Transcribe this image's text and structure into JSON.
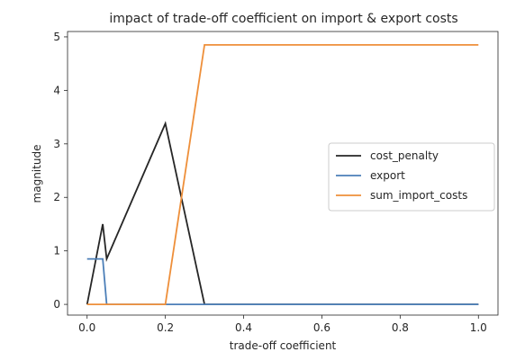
{
  "chart_data": {
    "type": "line",
    "title": "impact of trade-off coefficient on import & export costs",
    "xlabel": "trade-off coefficient",
    "ylabel": "magnitude",
    "xlim": [
      -0.05,
      1.05
    ],
    "ylim": [
      -0.2,
      5.1
    ],
    "xticks": [
      0.0,
      0.2,
      0.4,
      0.6,
      0.8,
      1.0
    ],
    "xtick_labels": [
      "0.0",
      "0.2",
      "0.4",
      "0.6",
      "0.8",
      "1.0"
    ],
    "yticks": [
      0,
      1,
      2,
      3,
      4,
      5
    ],
    "ytick_labels": [
      "0",
      "1",
      "2",
      "3",
      "4",
      "5"
    ],
    "grid": false,
    "legend_position": "center-right",
    "series": [
      {
        "name": "cost_penalty",
        "color": "#262626",
        "x": [
          0.0,
          0.04,
          0.05,
          0.2,
          0.3,
          1.0
        ],
        "y": [
          0.0,
          1.5,
          0.85,
          3.38,
          0.0,
          0.0
        ]
      },
      {
        "name": "export",
        "color": "#4c7fb8",
        "x": [
          0.0,
          0.04,
          0.05,
          1.0
        ],
        "y": [
          0.85,
          0.85,
          0.0,
          0.0
        ]
      },
      {
        "name": "sum_import_costs",
        "color": "#ee8f3a",
        "x": [
          0.0,
          0.2,
          0.3,
          1.0
        ],
        "y": [
          0.0,
          0.0,
          4.85,
          4.85
        ]
      }
    ]
  }
}
